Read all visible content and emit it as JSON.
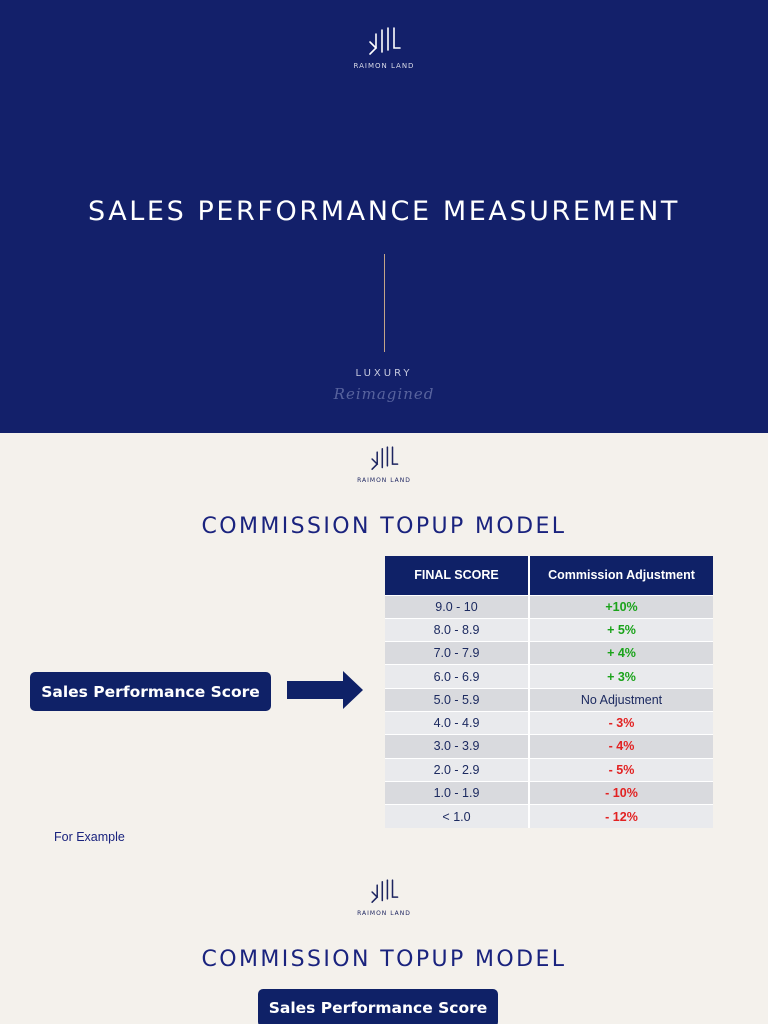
{
  "slide1": {
    "logo_text": "RAIMON LAND",
    "title": "SALES PERFORMANCE MEASUREMENT",
    "tagline_top": "LUXURY",
    "tagline_script": "Reimagined"
  },
  "slide2": {
    "logo_text": "RAIMON LAND",
    "heading": "COMMISSION TOPUP MODEL",
    "score_label": "Sales Performance Score",
    "table": {
      "headers": [
        "FINAL SCORE",
        "Commission Adjustment"
      ],
      "rows": [
        {
          "score": "9.0 - 10",
          "adjustment": "+10%",
          "tone": "pos"
        },
        {
          "score": "8.0 - 8.9",
          "adjustment": "+ 5%",
          "tone": "pos"
        },
        {
          "score": "7.0 - 7.9",
          "adjustment": "+ 4%",
          "tone": "pos"
        },
        {
          "score": "6.0 - 6.9",
          "adjustment": "+ 3%",
          "tone": "pos"
        },
        {
          "score": "5.0 - 5.9",
          "adjustment": "No Adjustment",
          "tone": "neu"
        },
        {
          "score": "4.0 - 4.9",
          "adjustment": "- 3%",
          "tone": "neg"
        },
        {
          "score": "3.0 - 3.9",
          "adjustment": "- 4%",
          "tone": "neg"
        },
        {
          "score": "2.0 - 2.9",
          "adjustment": "- 5%",
          "tone": "neg"
        },
        {
          "score": "1.0 - 1.9",
          "adjustment": "- 10%",
          "tone": "neg"
        },
        {
          "score": "< 1.0",
          "adjustment": "- 12%",
          "tone": "neg"
        }
      ]
    },
    "example_label": "For Example"
  },
  "slide3": {
    "logo_text": "RAIMON LAND",
    "heading": "COMMISSION TOPUP MODEL",
    "score_label": "Sales Performance Score"
  },
  "colors": {
    "navy": "#13206a",
    "cream": "#f4f1ec",
    "positive": "#1aa31a",
    "negative": "#e22222",
    "accent_line": "#c2a488"
  }
}
